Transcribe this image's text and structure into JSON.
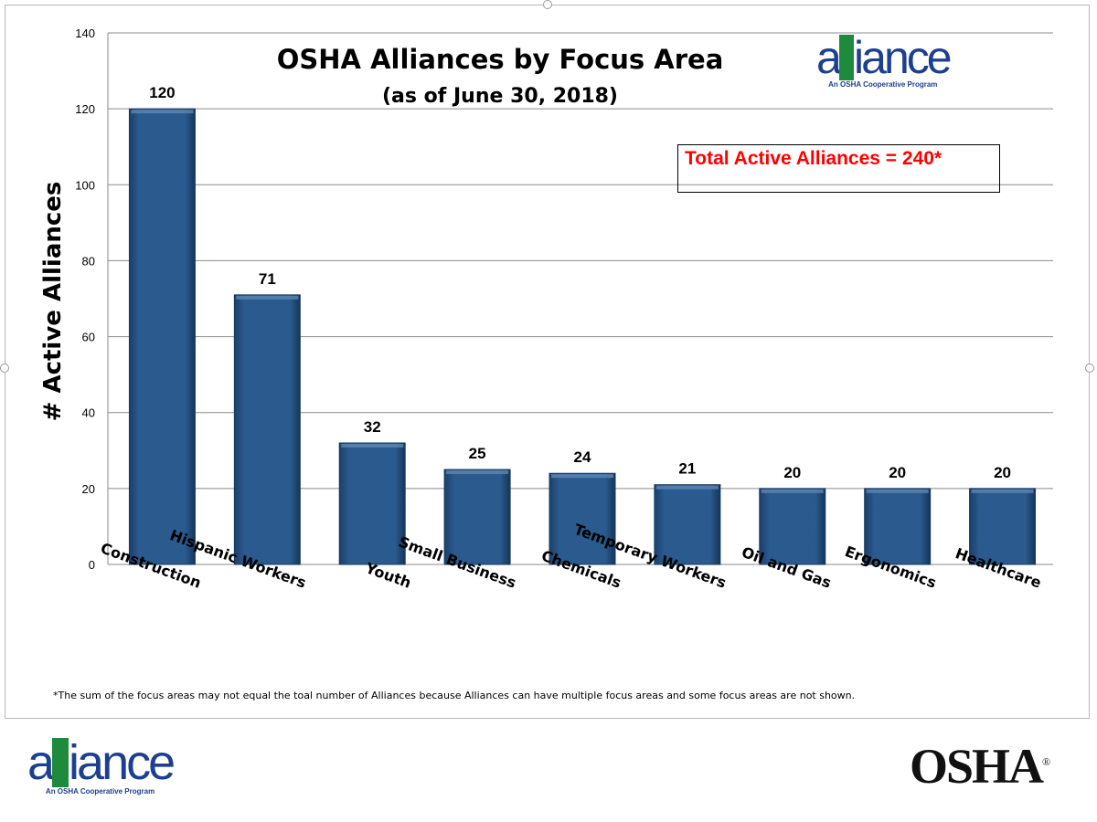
{
  "chart_data": {
    "type": "bar",
    "title": "OSHA Alliances by Focus Area",
    "subtitle": "(as of  June 30, 2018)",
    "xlabel": "",
    "ylabel": "# Active Alliances",
    "ylim": [
      0,
      140
    ],
    "yticks": [
      0,
      20,
      40,
      60,
      80,
      100,
      120,
      140
    ],
    "grid": true,
    "categories": [
      "Construction",
      "Hispanic Workers",
      "Youth",
      "Small Business",
      "Chemicals",
      "Temporary Workers",
      "Oil and Gas",
      "Ergonomics",
      "Healthcare"
    ],
    "values": [
      120,
      71,
      32,
      25,
      24,
      21,
      20,
      20,
      20
    ],
    "bar_color": "#2a5a8e",
    "annotation": "Total Active Alliances = 240*",
    "annotation_color": "#ff0000"
  },
  "footnote": "*The sum of the focus areas may not equal the toal number of Alliances because Alliances can have multiple focus areas and some focus areas are not shown.",
  "logos": {
    "alliance_word_a": "a",
    "alliance_word_ll": "ll",
    "alliance_word_rest": "iance",
    "alliance_tagline": "An OSHA Cooperative Program",
    "osha": "OSHA",
    "osha_mark": "®"
  }
}
